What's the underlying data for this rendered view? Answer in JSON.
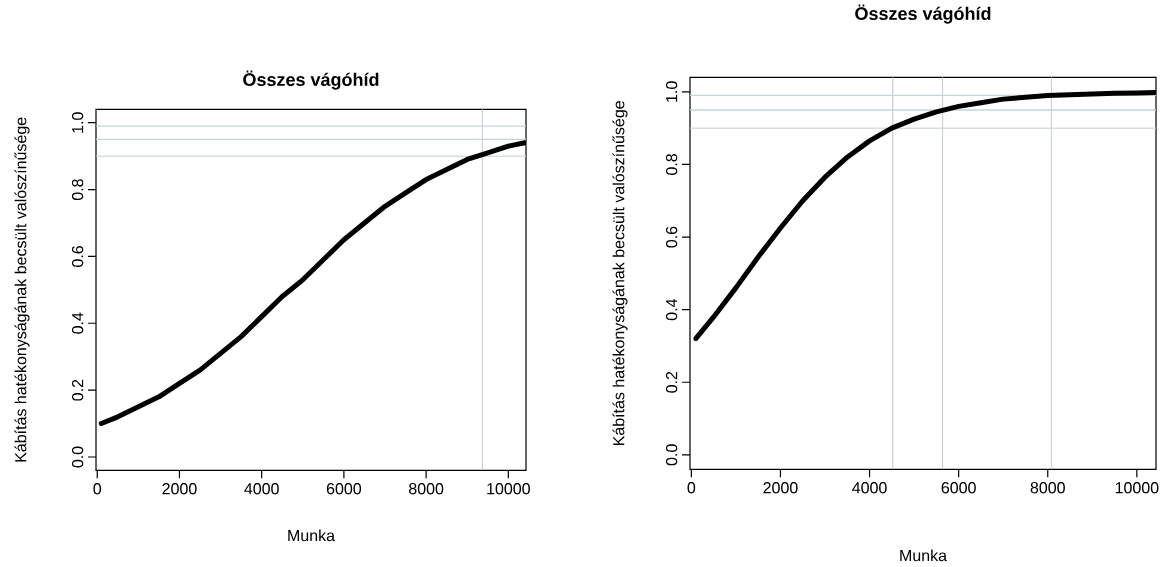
{
  "chart_data": [
    {
      "type": "line",
      "title": "Összes vágóhíd",
      "xlabel": "Munka",
      "ylabel": "Kábítás hatékonyságának becsült valószínűsége",
      "x": [
        100,
        500,
        1000,
        1500,
        2000,
        2500,
        3000,
        3500,
        4000,
        4500,
        5000,
        5500,
        6000,
        6500,
        7000,
        7500,
        8000,
        8500,
        9000,
        9500,
        10000,
        10400
      ],
      "series": [
        {
          "color": "#000000",
          "values": [
            0.1,
            0.12,
            0.15,
            0.18,
            0.22,
            0.26,
            0.31,
            0.36,
            0.42,
            0.48,
            0.53,
            0.59,
            0.65,
            0.7,
            0.75,
            0.79,
            0.83,
            0.86,
            0.89,
            0.91,
            0.93,
            0.94
          ]
        }
      ],
      "xlim": [
        -30,
        10430
      ],
      "ylim": [
        -0.04,
        1.04
      ],
      "xticks": [
        0,
        2000,
        4000,
        6000,
        8000,
        10000
      ],
      "yticks": [
        {
          "value": 0,
          "label": "0.0"
        },
        {
          "value": 0.2,
          "label": "0.2"
        },
        {
          "value": 0.4,
          "label": "0.4"
        },
        {
          "value": 0.6,
          "label": "0.6"
        },
        {
          "value": 0.8,
          "label": "0.8"
        },
        {
          "value": 1,
          "label": "1.0"
        }
      ],
      "ref_lines": [
        {
          "axis": "y",
          "value": 0.9,
          "color": "#c8d3d8"
        },
        {
          "axis": "y",
          "value": 0.95,
          "color": "#c8d3d8"
        },
        {
          "axis": "y",
          "value": 0.99,
          "color": "#c8d3d8"
        },
        {
          "axis": "x",
          "value": 9370,
          "color": "#c8d3d8"
        }
      ]
    },
    {
      "type": "line",
      "title": "Összes vágóhíd",
      "xlabel": "Munka",
      "ylabel": "Kábítás hatékonyságának becsült valószínűsége",
      "x": [
        100,
        500,
        1000,
        1500,
        2000,
        2500,
        3000,
        3500,
        4000,
        4500,
        5000,
        5500,
        6000,
        6500,
        7000,
        7500,
        8000,
        8500,
        9000,
        9500,
        10000,
        10400
      ],
      "series": [
        {
          "color": "#000000",
          "values": [
            0.32,
            0.38,
            0.46,
            0.545,
            0.625,
            0.7,
            0.765,
            0.82,
            0.865,
            0.9,
            0.925,
            0.945,
            0.96,
            0.97,
            0.98,
            0.985,
            0.99,
            0.992,
            0.994,
            0.996,
            0.997,
            0.998
          ]
        }
      ],
      "xlim": [
        -30,
        10430
      ],
      "ylim": [
        -0.04,
        1.04
      ],
      "xticks": [
        0,
        2000,
        4000,
        6000,
        8000,
        10000
      ],
      "yticks": [
        {
          "value": 0,
          "label": "0.0"
        },
        {
          "value": 0.2,
          "label": "0.2"
        },
        {
          "value": 0.4,
          "label": "0.4"
        },
        {
          "value": 0.6,
          "label": "0.6"
        },
        {
          "value": 0.8,
          "label": "0.8"
        },
        {
          "value": 1,
          "label": "1.0"
        }
      ],
      "ref_lines": [
        {
          "axis": "y",
          "value": 0.9,
          "color": "#c8d3d8"
        },
        {
          "axis": "y",
          "value": 0.95,
          "color": "#c8d3d8"
        },
        {
          "axis": "y",
          "value": 0.99,
          "color": "#c8d3d8"
        },
        {
          "axis": "x",
          "value": 4520,
          "color": "#c8d3d8"
        },
        {
          "axis": "x",
          "value": 5640,
          "color": "#c8d3d8"
        },
        {
          "axis": "x",
          "value": 8080,
          "color": "#c8d3d8"
        }
      ]
    }
  ]
}
